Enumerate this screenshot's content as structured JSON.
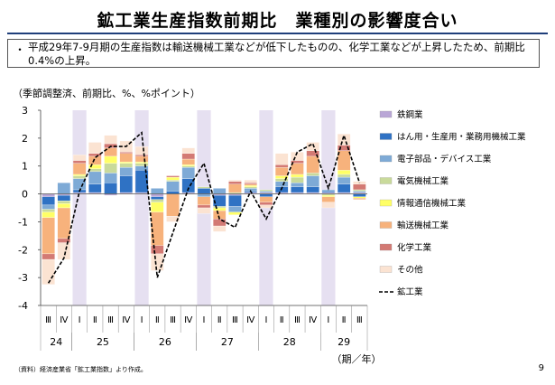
{
  "page": {
    "title": "鉱工業生産指数前期比　業種別の影響度合い",
    "summary": "平成29年7-9月期の生産指数は輸送機械工業などが低下したものの、化学工業などが上昇したため、前期比0.4%の上昇。",
    "bullet": "・",
    "unit_note": "（季節調整済、前期比、%、%ポイント）",
    "source_note": "（資料）経済産業省「鉱工業指数」より作成。",
    "page_number": "9",
    "period_unit_label": "（期／年）"
  },
  "chart_data": {
    "type": "bar",
    "stacked": true,
    "ylim": [
      -4,
      3
    ],
    "yticks": [
      -4,
      -3,
      -2,
      -1,
      0,
      1,
      2,
      3
    ],
    "grid": false,
    "legend_position": "right",
    "categories": [
      "Ⅲ",
      "Ⅳ",
      "Ⅰ",
      "Ⅱ",
      "Ⅲ",
      "Ⅳ",
      "Ⅰ",
      "Ⅱ",
      "Ⅲ",
      "Ⅳ",
      "Ⅰ",
      "Ⅱ",
      "Ⅲ",
      "Ⅳ",
      "Ⅰ",
      "Ⅱ",
      "Ⅲ",
      "Ⅳ",
      "Ⅰ",
      "Ⅱ",
      "Ⅲ"
    ],
    "year_groups": [
      {
        "label": "24",
        "start": 0,
        "count": 2
      },
      {
        "label": "25",
        "start": 2,
        "count": 4
      },
      {
        "label": "26",
        "start": 6,
        "count": 4
      },
      {
        "label": "27",
        "start": 10,
        "count": 4
      },
      {
        "label": "28",
        "start": 14,
        "count": 4
      },
      {
        "label": "29",
        "start": 18,
        "count": 3
      }
    ],
    "shaded_quarter": "Ⅰ",
    "series": [
      {
        "name": "鉄鋼業",
        "color": "#b9a6d6",
        "values": [
          -0.1,
          -0.05,
          0.05,
          0.05,
          -0.05,
          0.05,
          0.05,
          -0.1,
          0.0,
          0.05,
          0.0,
          -0.05,
          -0.05,
          0.05,
          0.05,
          0.05,
          0.05,
          0.05,
          0.05,
          0.05,
          0.05
        ]
      },
      {
        "name": "はん用・生産用・業務用機械工業",
        "color": "#2f72c4",
        "values": [
          -0.3,
          -0.2,
          0.1,
          0.3,
          0.4,
          0.6,
          0.8,
          -0.1,
          0.1,
          0.5,
          0.2,
          -0.4,
          -0.4,
          0.05,
          -0.1,
          0.2,
          0.2,
          0.2,
          0.05,
          0.3,
          -0.1
        ]
      },
      {
        "name": "電子部品・デバイス工業",
        "color": "#7eaad6",
        "values": [
          -0.15,
          0.4,
          0.4,
          0.45,
          0.35,
          0.3,
          0.15,
          0.2,
          0.35,
          0.4,
          -0.1,
          0.2,
          -0.2,
          0.1,
          0.05,
          0.2,
          0.15,
          0.4,
          0.05,
          0.25,
          0.05
        ]
      },
      {
        "name": "電気機械工業",
        "color": "#c9da9b",
        "values": [
          -0.1,
          -0.1,
          0.1,
          0.1,
          0.35,
          0.15,
          0.1,
          -0.1,
          0.05,
          0.05,
          0.05,
          -0.05,
          0.05,
          0.05,
          0.05,
          0.1,
          0.2,
          0.1,
          -0.05,
          0.1,
          0.05
        ]
      },
      {
        "name": "情報通信機械工業",
        "color": "#ffff66",
        "values": [
          -0.2,
          -0.15,
          0.05,
          0.15,
          0.25,
          0.05,
          0.05,
          -0.35,
          0.1,
          0.05,
          0.0,
          -0.1,
          -0.1,
          0.05,
          0.0,
          0.1,
          0.1,
          0.0,
          -0.05,
          0.15,
          -0.05
        ]
      },
      {
        "name": "輸送機械工業",
        "color": "#f7b27c",
        "values": [
          -1.3,
          -1.1,
          0.4,
          0.3,
          0.3,
          0.3,
          0.2,
          -1.2,
          -0.8,
          0.2,
          -0.3,
          -0.3,
          0.3,
          0.05,
          -0.2,
          0.3,
          0.4,
          0.6,
          -0.2,
          0.7,
          -0.05
        ]
      },
      {
        "name": "化学工業",
        "color": "#d37a74",
        "values": [
          -0.2,
          -0.15,
          0.1,
          0.1,
          0.15,
          0.05,
          0.05,
          -0.3,
          0.05,
          0.2,
          -0.1,
          -0.25,
          0.1,
          0.05,
          -0.1,
          0.1,
          0.1,
          0.2,
          0.0,
          0.2,
          0.2
        ]
      },
      {
        "name": "その他",
        "color": "#fbe3d2",
        "values": [
          -0.9,
          -0.6,
          0.2,
          0.4,
          0.3,
          0.4,
          0.3,
          -0.6,
          -0.2,
          0.2,
          -0.2,
          -0.2,
          0.05,
          0.1,
          -0.1,
          0.4,
          0.3,
          0.3,
          -0.2,
          0.4,
          0.1
        ]
      }
    ],
    "line": {
      "name": "鉱工業",
      "color": "#000000",
      "values": [
        -3.2,
        -2.3,
        0.1,
        1.3,
        1.7,
        1.7,
        2.2,
        -3.0,
        -1.4,
        0.2,
        1.1,
        -0.9,
        -1.2,
        0.1,
        -0.9,
        0.2,
        1.5,
        1.8,
        0.2,
        2.1,
        0.4
      ]
    }
  }
}
